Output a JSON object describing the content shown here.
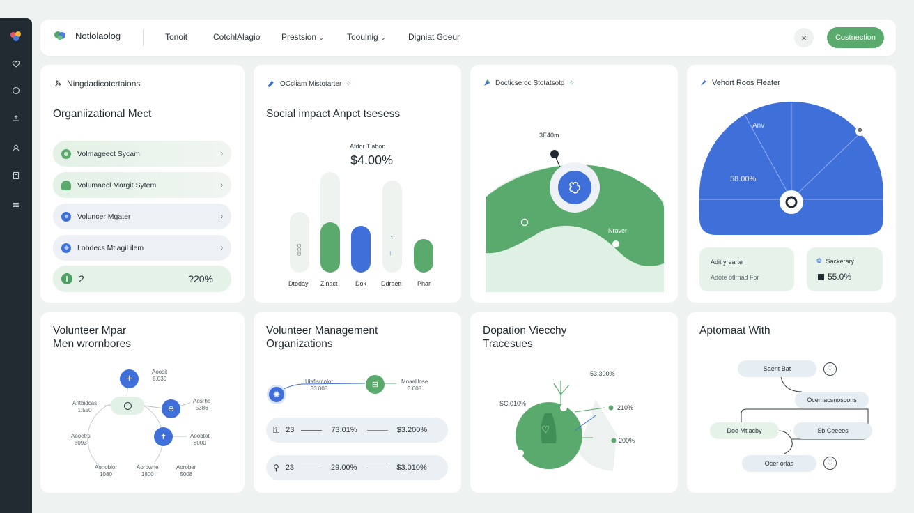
{
  "nav": {
    "brand": "Notlolaolog",
    "items": [
      "Tonoit",
      "CotchlAlagio",
      "Prestsion",
      "Tooulnig",
      "Digniat Goeur"
    ],
    "cta": "Costnection",
    "close": "×"
  },
  "colors": {
    "green": "#5aaa6e",
    "blue": "#3f6fd8",
    "lightgreen": "#e6f3ea",
    "rail": "#222b31"
  },
  "card1": {
    "label": "Ningdadicotcrtaions",
    "title": "Organiizational Mect",
    "rows": [
      {
        "label": "Volmageect Sycam"
      },
      {
        "label": "Volumaecl Margit Sytem"
      },
      {
        "label": "Voluncer Mgater"
      },
      {
        "label": "Lobdecs Mtlagil ilem"
      }
    ],
    "summary": {
      "left": "2",
      "right": "?20%"
    }
  },
  "card2": {
    "label": "OCcliam Mistotarter",
    "title": "Social impact Anpct tsesess",
    "caption": "Afdor Tlabon",
    "value": "$4.00%",
    "bar_text": "DCID",
    "bar_labels": [
      "Dtoday",
      "Zinact",
      "Dok",
      "Ddraett",
      "Phar"
    ]
  },
  "card3": {
    "label": "Docticse oc Stotatsotd",
    "value": "3E40m",
    "tag": "Nraver"
  },
  "card4": {
    "label": "Vehort Roos Fleater",
    "arc_top": "Anv",
    "arc_value": "58.00%",
    "stat1": {
      "line1": "Adit yrearte",
      "line2": "Adote otlrhad For"
    },
    "stat2": {
      "title": "Sackerary",
      "value": "55.0%"
    }
  },
  "card5": {
    "title1": "Volunteer Mpar",
    "title2": "Men wrornbores",
    "labels": [
      {
        "t": "Aoosit",
        "v": "8.030"
      },
      {
        "t": "Antbidcas",
        "v": "1:550"
      },
      {
        "t": "Aosrhe",
        "v": "5386"
      },
      {
        "t": "Aooetrs",
        "v": "5093"
      },
      {
        "t": "Aoobtot",
        "v": "8000"
      },
      {
        "t": "Aonoblor",
        "v": "1080"
      },
      {
        "t": "Aorowhe",
        "v": "1800"
      },
      {
        "t": "Aorober",
        "v": "5008"
      }
    ]
  },
  "card6": {
    "title1": "Volunteer Management",
    "title2": "Organizations",
    "node1": {
      "t": "Ulafisrcolor",
      "v": "33.008"
    },
    "node2": {
      "t": "Moaalilose",
      "v": "3.008"
    },
    "rows": [
      {
        "n": "23",
        "a": "73.01%",
        "b": "$3.200%"
      },
      {
        "n": "23",
        "a": "29.00%",
        "b": "$3.010%"
      }
    ]
  },
  "card7": {
    "title1": "Dopation Viecchy",
    "title2": "Tracesues",
    "v1": "53.300%",
    "v2": "SC.010%",
    "v3": "210%",
    "v4": "200%"
  },
  "card8": {
    "title": "Aptomaat With",
    "nodes": [
      "Saent Bat",
      "Ocemacsnoscons",
      "Doo Mtlacby",
      "Sb Ceeees",
      "Ocer orlas"
    ]
  }
}
